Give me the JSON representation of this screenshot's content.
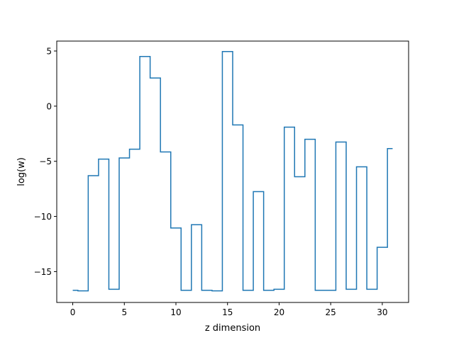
{
  "chart_data": {
    "type": "line",
    "drawstyle": "steps-mid",
    "title": "",
    "xlabel": "z dimension",
    "ylabel": "log(w)",
    "xlim": [
      -1.55,
      32.55
    ],
    "ylim": [
      -17.8,
      5.9
    ],
    "xticks": [
      0,
      5,
      10,
      15,
      20,
      25,
      30
    ],
    "yticks": [
      -15,
      -10,
      -5,
      0,
      5
    ],
    "xtick_labels": [
      "0",
      "5",
      "10",
      "15",
      "20",
      "25",
      "30"
    ],
    "ytick_labels": [
      "−15",
      "−10",
      "−5",
      "0",
      "5"
    ],
    "grid": false,
    "legend": "none",
    "color": "#1f77b4",
    "series": [
      {
        "x": [
          0,
          1,
          2,
          3,
          4,
          5,
          6,
          7,
          8,
          9,
          10,
          11,
          12,
          13,
          14,
          15,
          16,
          17,
          18,
          19,
          20,
          21,
          22,
          23,
          24,
          25,
          26,
          27,
          28,
          29,
          30,
          31
        ],
        "values": [
          -16.7,
          -16.75,
          -6.3,
          -4.8,
          -16.6,
          -4.7,
          -3.9,
          4.5,
          2.55,
          -4.15,
          -11.05,
          -16.7,
          -10.75,
          -16.7,
          -16.75,
          4.95,
          -1.7,
          -16.7,
          -7.75,
          -16.7,
          -16.6,
          -1.9,
          -6.4,
          -3.0,
          -16.7,
          -16.7,
          -3.25,
          -16.6,
          -5.5,
          -16.6,
          -12.8,
          -3.85
        ]
      }
    ]
  }
}
